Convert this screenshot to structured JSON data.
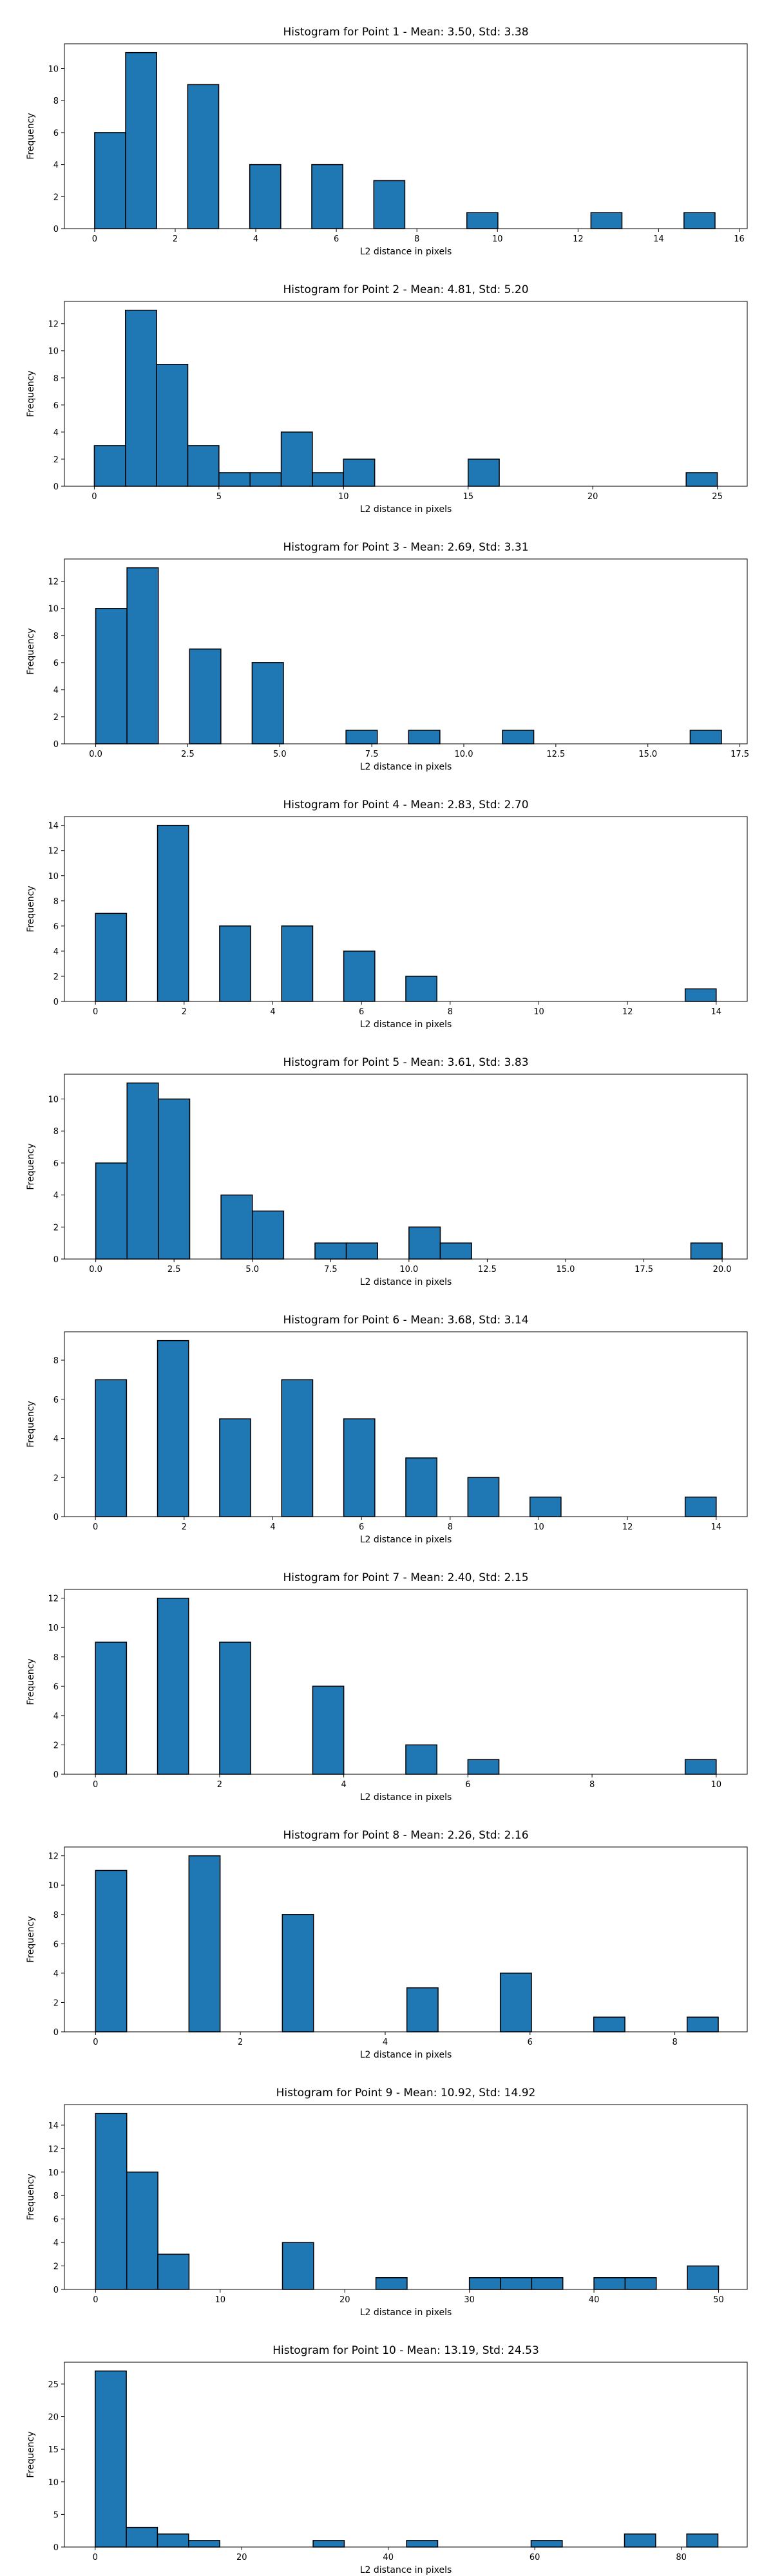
{
  "chart_data": [
    {
      "type": "bar",
      "title": "Histogram for Point 1 - Mean: 3.50, Std: 3.38",
      "xlabel": "L2 distance in pixels",
      "ylabel": "Frequency",
      "xlim": [
        -0.75,
        16.2
      ],
      "ylim": [
        0,
        11.55
      ],
      "xticks": [
        0,
        2,
        4,
        6,
        8,
        10,
        12,
        14,
        16
      ],
      "xtick_labels": [
        "0",
        "2",
        "4",
        "6",
        "8",
        "10",
        "12",
        "14",
        "16"
      ],
      "yticks": [
        0,
        2,
        4,
        6,
        8,
        10
      ],
      "bins": [
        [
          0,
          0.77,
          6
        ],
        [
          0.77,
          1.54,
          11
        ],
        [
          2.31,
          3.08,
          9
        ],
        [
          3.85,
          4.62,
          4
        ],
        [
          5.39,
          6.16,
          4
        ],
        [
          6.93,
          7.7,
          3
        ],
        [
          9.24,
          10.01,
          1
        ],
        [
          12.32,
          13.09,
          1
        ],
        [
          14.63,
          15.4,
          1
        ]
      ]
    },
    {
      "type": "bar",
      "title": "Histogram for Point 2 - Mean: 4.81, Std: 5.20",
      "xlabel": "L2 distance in pixels",
      "ylabel": "Frequency",
      "xlim": [
        -1.2,
        26.2
      ],
      "ylim": [
        0,
        13.65
      ],
      "xticks": [
        0,
        5,
        10,
        15,
        20,
        25
      ],
      "xtick_labels": [
        "0",
        "5",
        "10",
        "15",
        "20",
        "25"
      ],
      "yticks": [
        0,
        2,
        4,
        6,
        8,
        10,
        12
      ],
      "bins": [
        [
          0,
          1.25,
          3
        ],
        [
          1.25,
          2.5,
          13
        ],
        [
          2.5,
          3.75,
          9
        ],
        [
          3.75,
          5,
          3
        ],
        [
          5,
          6.25,
          1
        ],
        [
          6.25,
          7.5,
          1
        ],
        [
          7.5,
          8.75,
          4
        ],
        [
          8.75,
          10,
          1
        ],
        [
          10,
          11.25,
          2
        ],
        [
          15,
          16.25,
          2
        ],
        [
          23.75,
          25,
          1
        ]
      ]
    },
    {
      "type": "bar",
      "title": "Histogram for Point 3 - Mean: 2.69, Std: 3.31",
      "xlabel": "L2 distance in pixels",
      "ylabel": "Frequency",
      "xlim": [
        -0.85,
        17.7
      ],
      "ylim": [
        0,
        13.65
      ],
      "xticks": [
        0,
        2.5,
        5,
        7.5,
        10,
        12.5,
        15,
        17.5
      ],
      "xtick_labels": [
        "0.0",
        "2.5",
        "5.0",
        "7.5",
        "10.0",
        "12.5",
        "15.0",
        "17.5"
      ],
      "yticks": [
        0,
        2,
        4,
        6,
        8,
        10,
        12
      ],
      "bins": [
        [
          0,
          0.85,
          10
        ],
        [
          0.85,
          1.7,
          13
        ],
        [
          2.55,
          3.4,
          7
        ],
        [
          4.25,
          5.1,
          6
        ],
        [
          6.8,
          7.65,
          1
        ],
        [
          8.5,
          9.35,
          1
        ],
        [
          11.05,
          11.9,
          1
        ],
        [
          16.15,
          17,
          1
        ]
      ]
    },
    {
      "type": "bar",
      "title": "Histogram for Point 4 - Mean: 2.83, Std: 2.70",
      "xlabel": "L2 distance in pixels",
      "ylabel": "Frequency",
      "xlim": [
        -0.7,
        14.7
      ],
      "ylim": [
        0,
        14.7
      ],
      "xticks": [
        0,
        2,
        4,
        6,
        8,
        10,
        12,
        14
      ],
      "xtick_labels": [
        "0",
        "2",
        "4",
        "6",
        "8",
        "10",
        "12",
        "14"
      ],
      "yticks": [
        0,
        2,
        4,
        6,
        8,
        10,
        12,
        14
      ],
      "bins": [
        [
          0,
          0.7,
          7
        ],
        [
          1.4,
          2.1,
          14
        ],
        [
          2.8,
          3.5,
          6
        ],
        [
          4.2,
          4.9,
          6
        ],
        [
          5.6,
          6.3,
          4
        ],
        [
          7,
          7.7,
          2
        ],
        [
          13.3,
          14,
          1
        ]
      ]
    },
    {
      "type": "bar",
      "title": "Histogram for Point 5 - Mean: 3.61, Std: 3.83",
      "xlabel": "L2 distance in pixels",
      "ylabel": "Frequency",
      "xlim": [
        -1.0,
        20.8
      ],
      "ylim": [
        0,
        11.55
      ],
      "xticks": [
        0,
        2.5,
        5,
        7.5,
        10,
        12.5,
        15,
        17.5,
        20
      ],
      "xtick_labels": [
        "0.0",
        "2.5",
        "5.0",
        "7.5",
        "10.0",
        "12.5",
        "15.0",
        "17.5",
        "20.0"
      ],
      "yticks": [
        0,
        2,
        4,
        6,
        8,
        10
      ],
      "bins": [
        [
          0,
          1,
          6
        ],
        [
          1,
          2,
          11
        ],
        [
          2,
          3,
          10
        ],
        [
          4,
          5,
          4
        ],
        [
          5,
          6,
          3
        ],
        [
          7,
          8,
          1
        ],
        [
          8,
          9,
          1
        ],
        [
          10,
          11,
          2
        ],
        [
          11,
          12,
          1
        ],
        [
          19,
          20,
          1
        ]
      ]
    },
    {
      "type": "bar",
      "title": "Histogram for Point 6 - Mean: 3.68, Std: 3.14",
      "xlabel": "L2 distance in pixels",
      "ylabel": "Frequency",
      "xlim": [
        -0.7,
        14.7
      ],
      "ylim": [
        0,
        9.45
      ],
      "xticks": [
        0,
        2,
        4,
        6,
        8,
        10,
        12,
        14
      ],
      "xtick_labels": [
        "0",
        "2",
        "4",
        "6",
        "8",
        "10",
        "12",
        "14"
      ],
      "yticks": [
        0,
        2,
        4,
        6,
        8
      ],
      "bins": [
        [
          0,
          0.7,
          7
        ],
        [
          1.4,
          2.1,
          9
        ],
        [
          2.8,
          3.5,
          5
        ],
        [
          4.2,
          4.9,
          7
        ],
        [
          5.6,
          6.3,
          5
        ],
        [
          7,
          7.7,
          3
        ],
        [
          8.4,
          9.1,
          2
        ],
        [
          9.8,
          10.5,
          1
        ],
        [
          13.3,
          14,
          1
        ]
      ]
    },
    {
      "type": "bar",
      "title": "Histogram for Point 7 - Mean: 2.40, Std: 2.15",
      "xlabel": "L2 distance in pixels",
      "ylabel": "Frequency",
      "xlim": [
        -0.5,
        10.5
      ],
      "ylim": [
        0,
        12.6
      ],
      "xticks": [
        0,
        2,
        4,
        6,
        8,
        10
      ],
      "xtick_labels": [
        "0",
        "2",
        "4",
        "6",
        "8",
        "10"
      ],
      "yticks": [
        0,
        2,
        4,
        6,
        8,
        10,
        12
      ],
      "bins": [
        [
          0,
          0.5,
          9
        ],
        [
          1,
          1.5,
          12
        ],
        [
          2,
          2.5,
          9
        ],
        [
          3.5,
          4,
          6
        ],
        [
          5,
          5.5,
          2
        ],
        [
          6,
          6.5,
          1
        ],
        [
          9.5,
          10,
          1
        ]
      ]
    },
    {
      "type": "bar",
      "title": "Histogram for Point 8 - Mean: 2.26, Std: 2.16",
      "xlabel": "L2 distance in pixels",
      "ylabel": "Frequency",
      "xlim": [
        -0.43,
        9.0
      ],
      "ylim": [
        0,
        12.6
      ],
      "xticks": [
        0,
        2,
        4,
        6,
        8
      ],
      "xtick_labels": [
        "0",
        "2",
        "4",
        "6",
        "8"
      ],
      "yticks": [
        0,
        2,
        4,
        6,
        8,
        10,
        12
      ],
      "bins": [
        [
          0,
          0.43,
          11
        ],
        [
          1.29,
          1.72,
          12
        ],
        [
          2.58,
          3.01,
          8
        ],
        [
          4.3,
          4.73,
          3
        ],
        [
          5.59,
          6.02,
          4
        ],
        [
          6.88,
          7.31,
          1
        ],
        [
          8.17,
          8.6,
          1
        ]
      ]
    },
    {
      "type": "bar",
      "title": "Histogram for Point 9 - Mean: 10.92, Std: 14.92",
      "xlabel": "L2 distance in pixels",
      "ylabel": "Frequency",
      "xlim": [
        -2.5,
        52.3
      ],
      "ylim": [
        0,
        15.75
      ],
      "xticks": [
        0,
        10,
        20,
        30,
        40,
        50
      ],
      "xtick_labels": [
        "0",
        "10",
        "20",
        "30",
        "40",
        "50"
      ],
      "yticks": [
        0,
        2,
        4,
        6,
        8,
        10,
        12,
        14
      ],
      "bins": [
        [
          0,
          2.5,
          15
        ],
        [
          2.5,
          5,
          10
        ],
        [
          5,
          7.5,
          3
        ],
        [
          15,
          17.5,
          4
        ],
        [
          22.5,
          25,
          1
        ],
        [
          30,
          32.5,
          1
        ],
        [
          32.5,
          35,
          1
        ],
        [
          35,
          37.5,
          1
        ],
        [
          40,
          42.5,
          1
        ],
        [
          42.5,
          45,
          1
        ],
        [
          47.5,
          50,
          2
        ]
      ]
    },
    {
      "type": "bar",
      "title": "Histogram for Point 10 - Mean: 13.19, Std: 24.53",
      "xlabel": "L2 distance in pixels",
      "ylabel": "Frequency",
      "xlim": [
        -4.2,
        89.0
      ],
      "ylim": [
        0,
        28.35
      ],
      "xticks": [
        0,
        20,
        40,
        60,
        80
      ],
      "xtick_labels": [
        "0",
        "20",
        "40",
        "60",
        "80"
      ],
      "yticks": [
        0,
        5,
        10,
        15,
        20,
        25
      ],
      "bins": [
        [
          0,
          4.25,
          27
        ],
        [
          4.25,
          8.5,
          3
        ],
        [
          8.5,
          12.75,
          2
        ],
        [
          12.75,
          17,
          1
        ],
        [
          29.75,
          34,
          1
        ],
        [
          42.5,
          46.75,
          1
        ],
        [
          59.5,
          63.75,
          1
        ],
        [
          72.25,
          76.5,
          2
        ],
        [
          80.75,
          85,
          2
        ]
      ]
    }
  ],
  "colors": {
    "bar_fill": "#1f77b4",
    "bar_edge": "#000000",
    "axis": "#000000",
    "background": "#ffffff"
  }
}
